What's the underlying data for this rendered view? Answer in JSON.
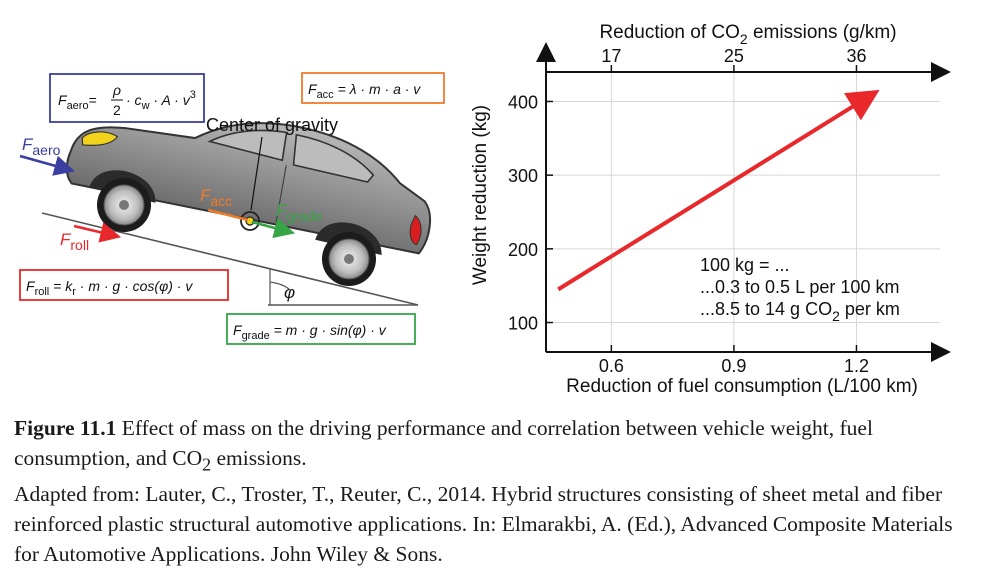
{
  "figure": {
    "left": {
      "formulas": {
        "aero": {
          "lhs": "F",
          "lhs_sub": "aero",
          "eq": "=",
          "frac_num": "ρ",
          "frac_den": "2",
          "rest": "· c",
          "rest_sub": "w",
          "tail": " · A · v",
          "tail_sup": "3"
        },
        "acc": {
          "lhs": "F",
          "lhs_sub": "acc",
          "rhs": " = λ · m · a · v"
        },
        "roll": {
          "lhs": "F",
          "lhs_sub": "roll",
          "mid": " = k",
          "mid_sub": "r",
          "rhs": " · m · g · cos(φ) · v"
        },
        "grade": {
          "lhs": "F",
          "lhs_sub": "grade",
          "rhs": " = m · g · sin(φ) · v"
        }
      },
      "labels": {
        "center_of_gravity": "Center of gravity",
        "f": "F",
        "aero_sub": "aero",
        "acc_sub": "acc",
        "grade_sub": "grade",
        "roll_sub": "roll",
        "angle": "φ"
      },
      "colors": {
        "aero": "#3a3fa0",
        "acc": "#f07c28",
        "roll": "#e8282a",
        "grade": "#35a545"
      }
    },
    "chart_data": {
      "type": "line",
      "top_axis_label": "Reduction of CO",
      "top_axis_label_sub": "2",
      "top_axis_label_tail": " emissions (g/km)",
      "top_ticks": [
        "17",
        "25",
        "36"
      ],
      "ylabel": "Weight reduction (kg)",
      "y_ticks": [
        100,
        200,
        300,
        400
      ],
      "ylim": [
        60,
        440
      ],
      "xlabel": "Reduction of fuel consumption (L/100 km)",
      "x_ticks": [
        "0.6",
        "0.9",
        "1.2"
      ],
      "xlim": [
        0.44,
        1.38
      ],
      "grid": true,
      "series": [
        {
          "x": [
            0.47,
            1.24
          ],
          "y": [
            145,
            410
          ],
          "color": "#e8282a"
        }
      ],
      "annotation": {
        "line1": "100 kg = ...",
        "line2": "...0.3 to 0.5 L per 100 km",
        "line3": "...8.5 to 14 g CO",
        "line3_sub": "2",
        "line3_tail": " per km"
      }
    }
  },
  "caption": {
    "label": "Figure 11.1",
    "text1": "  Effect of mass on the driving performance and correlation between vehicle weight, fuel consumption, and CO",
    "text1_sub": "2",
    "text1_tail": " emissions.",
    "source": "Adapted from: Lauter, C., Troster, T., Reuter, C., 2014. Hybrid structures consisting of sheet metal and fiber reinforced plastic structural automotive applications. In: Elmarakbi, A. (Ed.), Advanced Composite Materials for Automotive Applications. John Wiley & Sons."
  }
}
